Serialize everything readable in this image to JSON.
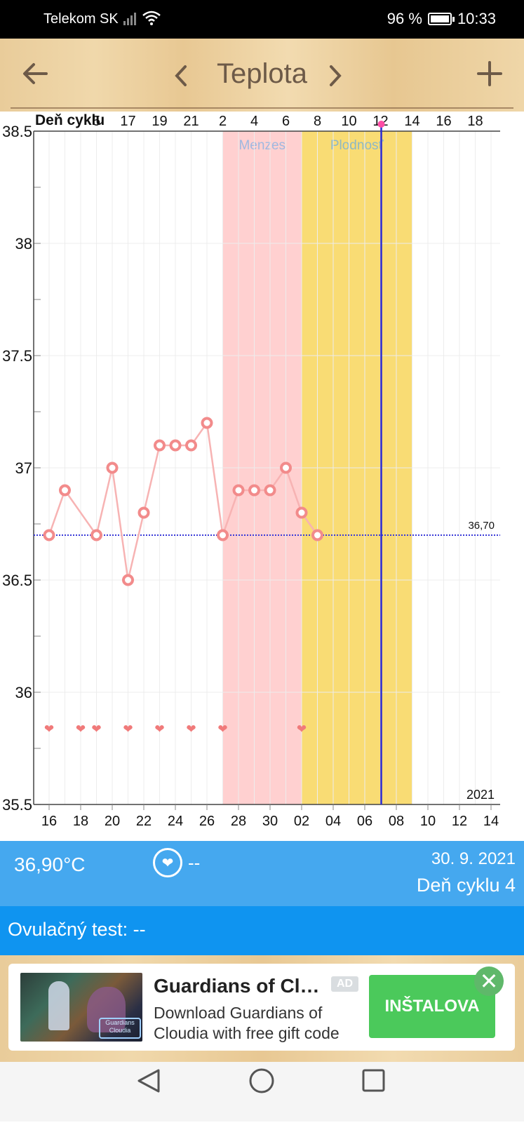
{
  "status_bar": {
    "carrier": "Telekom SK",
    "battery": "96 %",
    "time": "10:33"
  },
  "toolbar": {
    "title": "Teplota",
    "back_icon": "arrow-left-icon",
    "prev_icon": "chevron-left-icon",
    "next_icon": "chevron-right-icon",
    "add_icon": "plus-icon"
  },
  "chart_data": {
    "type": "line",
    "top_axis_label": "Deň cyklu",
    "top_ticks": [
      "5",
      "17",
      "19",
      "21",
      "2",
      "4",
      "6",
      "8",
      "10",
      "12",
      "14",
      "16",
      "18"
    ],
    "x_ticks": [
      "16",
      "18",
      "20",
      "22",
      "24",
      "26",
      "28",
      "30",
      "02",
      "04",
      "06",
      "08",
      "10",
      "12",
      "14"
    ],
    "y_ticks": [
      "38.5",
      "38",
      "37.5",
      "37",
      "36.5",
      "36",
      "35.5"
    ],
    "ylim": [
      35.5,
      38.5
    ],
    "year_label": "2021",
    "reference_label": "36,70",
    "reference_value": 36.7,
    "bands": [
      {
        "label": "Menzes",
        "from": 27,
        "to": 32,
        "color": "#ffd0d0",
        "label_color": "#9fb8e0"
      },
      {
        "label": "Plodnosť",
        "from": 32,
        "to": 39,
        "color": "#f9dc74",
        "label_color": "#8eb8c4"
      }
    ],
    "today": 37,
    "series": [
      {
        "x": [
          16,
          17,
          19,
          20,
          21,
          22,
          23,
          24,
          25,
          26,
          27,
          28,
          29,
          30,
          31,
          32,
          33
        ],
        "values": [
          36.7,
          36.9,
          36.7,
          37.0,
          36.5,
          36.8,
          37.1,
          37.1,
          37.1,
          37.2,
          36.7,
          36.9,
          36.9,
          36.9,
          37.0,
          36.8,
          36.7
        ],
        "color": "#f28b8b"
      }
    ],
    "heart_days": [
      16,
      18,
      19,
      21,
      23,
      25,
      27,
      32
    ],
    "heart_y": 35.84
  },
  "info": {
    "temperature": "36,90°C",
    "intercourse": "--",
    "date": "30. 9. 2021",
    "cycle_day": "Deň cyklu 4",
    "ovulation_test": "Ovulačný test: --"
  },
  "ad": {
    "title": "Guardians of Cl…",
    "badge": "AD",
    "description_1": "Download Guardians of",
    "description_2": "Cloudia with free gift code",
    "button": "INŠTALOVA",
    "close_icon": "close-icon",
    "image_text": "Guardians Cloudia"
  }
}
